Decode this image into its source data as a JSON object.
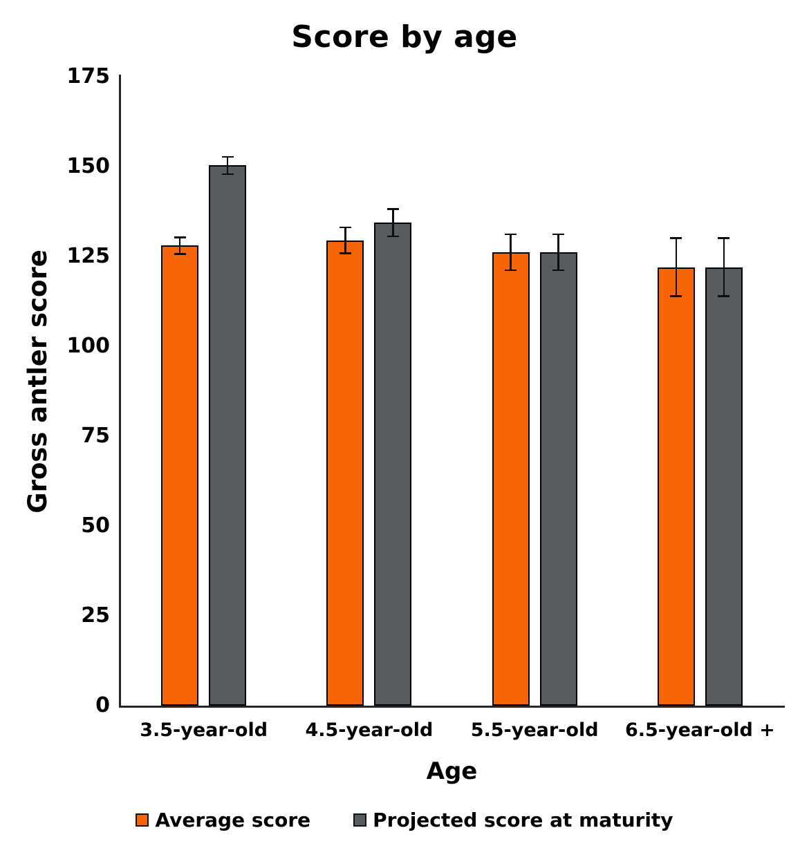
{
  "chart_data": {
    "type": "bar",
    "title": "Score by age",
    "xlabel": "Age",
    "ylabel": "Gross antler score",
    "categories": [
      "3.5-year-old",
      "4.5-year-old",
      "5.5-year-old",
      "6.5-year-old +"
    ],
    "series": [
      {
        "name": "Average score",
        "color": "#F66506",
        "values": [
          128,
          129.5,
          126.2,
          122
        ],
        "errors": [
          2.3,
          3.6,
          5,
          8.1
        ]
      },
      {
        "name": "Projected score at maturity",
        "color": "#595C5F",
        "values": [
          150.3,
          134.4,
          126.2,
          122
        ],
        "errors": [
          2.4,
          3.8,
          5,
          8.1
        ]
      }
    ],
    "ylim": [
      0,
      175
    ],
    "yticks": [
      0,
      25,
      50,
      75,
      100,
      125,
      150,
      175
    ],
    "grid": false,
    "error_bars": true,
    "legend_position": "bottom"
  }
}
